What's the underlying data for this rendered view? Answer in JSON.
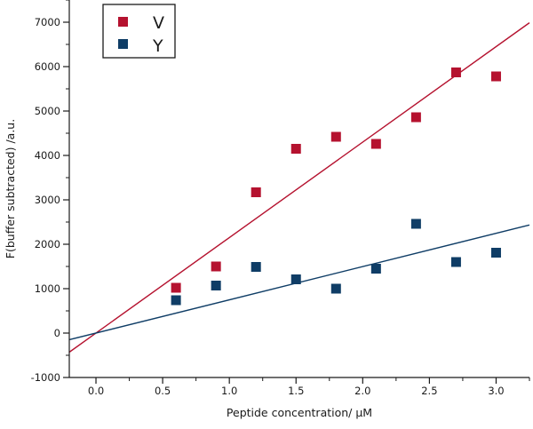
{
  "chart_data": {
    "type": "scatter",
    "xlabel": "Peptide concentration/ μM",
    "ylabel": "F(buffer subtracted) /a.u.",
    "xlim": [
      -0.2,
      3.25
    ],
    "ylim": [
      -1000,
      7500
    ],
    "x_ticks": [
      0.0,
      0.5,
      1.0,
      1.5,
      2.0,
      2.5,
      3.0
    ],
    "x_tick_labels": [
      "0.0",
      "0.5",
      "1.0",
      "1.5",
      "2.0",
      "2.5",
      "3.0"
    ],
    "y_ticks": [
      -1000,
      0,
      1000,
      2000,
      3000,
      4000,
      5000,
      6000,
      7000
    ],
    "y_tick_labels": [
      "-1000",
      "0",
      "1000",
      "2000",
      "3000",
      "4000",
      "5000",
      "6000",
      "7000"
    ],
    "grid": false,
    "legend_position": "top-left",
    "series": [
      {
        "name": "V",
        "color": "#b5122f",
        "marker": "square",
        "x": [
          0.6,
          0.9,
          1.2,
          1.5,
          1.8,
          2.1,
          2.4,
          2.7,
          3.0
        ],
        "y": [
          1020,
          1500,
          3170,
          4150,
          4420,
          4260,
          4860,
          5870,
          5780
        ],
        "fit": {
          "slope": 2150,
          "intercept": 0,
          "x_range": [
            -0.2,
            3.25
          ]
        }
      },
      {
        "name": "Y",
        "color": "#0f3d66",
        "marker": "square",
        "x": [
          0.6,
          0.9,
          1.2,
          1.5,
          1.8,
          2.1,
          2.4,
          2.7,
          3.0
        ],
        "y": [
          740,
          1070,
          1490,
          1210,
          1000,
          1450,
          2460,
          1600,
          1810
        ],
        "fit": {
          "slope": 749,
          "intercept": 0,
          "x_range": [
            -0.2,
            3.25
          ]
        }
      }
    ]
  }
}
